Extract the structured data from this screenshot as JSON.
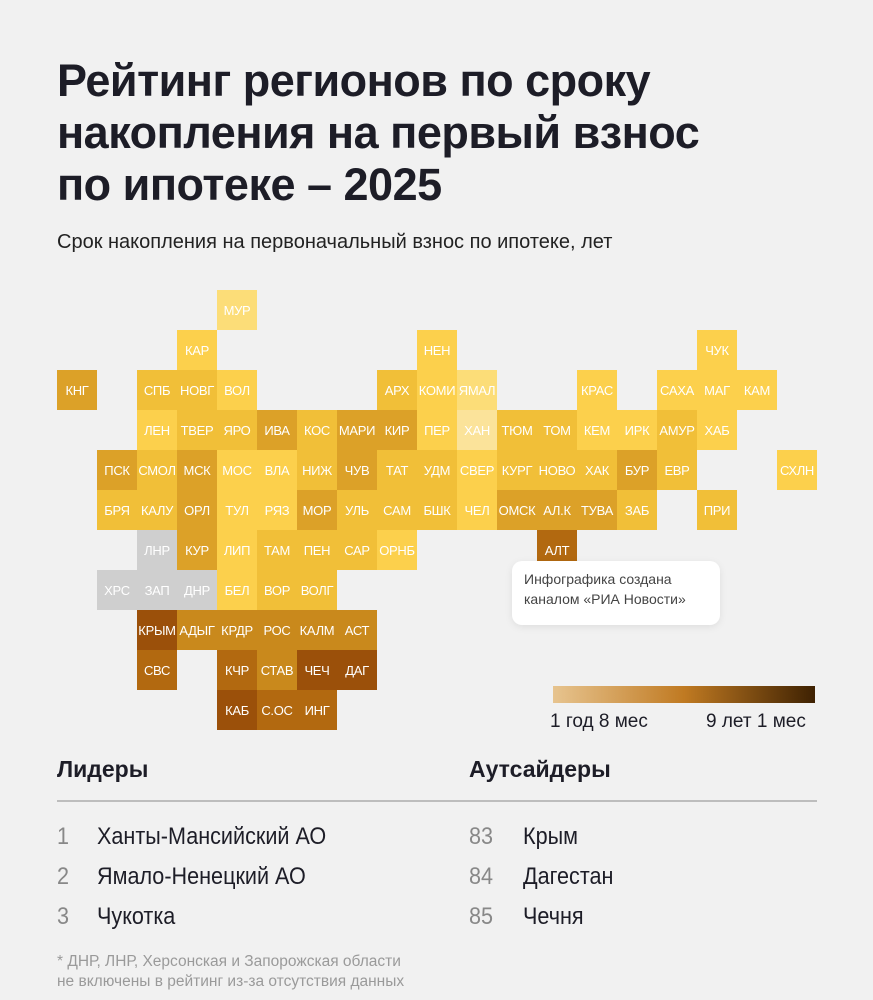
{
  "title_lines": [
    "Рейтинг регионов по сроку",
    "накопления на первый взнос",
    "по ипотеке – 2025"
  ],
  "subtitle": "Срок накопления на первоначальный взнос по ипотеке, лет",
  "colors": {
    "L0": "#fcdd78",
    "L1": "#fcd04c",
    "L2": "#f1bf38",
    "L3": "#dca128",
    "L4": "#c9891c",
    "L5": "#b26910",
    "L6": "#9b500a",
    "nodata": "#cfcfcf",
    "xan": "#fbe39a"
  },
  "tiles": [
    {
      "label": "МУР",
      "color": "L0"
    },
    {
      "label": "КАР",
      "color": "L1"
    },
    {
      "label": "НЕН",
      "color": "L1"
    },
    {
      "label": "ЧУК",
      "color": "L1"
    },
    {
      "label": "КНГ",
      "color": "L3"
    },
    {
      "label": "СПБ",
      "color": "L2"
    },
    {
      "label": "НОВГ",
      "color": "L2"
    },
    {
      "label": "ВОЛ",
      "color": "L1"
    },
    {
      "label": "АРХ",
      "color": "L2"
    },
    {
      "label": "КОМИ",
      "color": "L1"
    },
    {
      "label": "ЯМАЛ",
      "color": "L0"
    },
    {
      "label": "КРАС",
      "color": "L1"
    },
    {
      "label": "САХА",
      "color": "L1"
    },
    {
      "label": "МАГ",
      "color": "L1"
    },
    {
      "label": "КАМ",
      "color": "L1"
    },
    {
      "label": "ЛЕН",
      "color": "L1"
    },
    {
      "label": "ТВЕР",
      "color": "L2"
    },
    {
      "label": "ЯРО",
      "color": "L2"
    },
    {
      "label": "ИВА",
      "color": "L3"
    },
    {
      "label": "КОС",
      "color": "L2"
    },
    {
      "label": "МАРИ",
      "color": "L3"
    },
    {
      "label": "КИР",
      "color": "L3"
    },
    {
      "label": "ПЕР",
      "color": "L1"
    },
    {
      "label": "ХАН",
      "color": "xan"
    },
    {
      "label": "ТЮМ",
      "color": "L2"
    },
    {
      "label": "ТОМ",
      "color": "L2"
    },
    {
      "label": "КЕМ",
      "color": "L1"
    },
    {
      "label": "ИРК",
      "color": "L1"
    },
    {
      "label": "АМУР",
      "color": "L2"
    },
    {
      "label": "ХАБ",
      "color": "L1"
    },
    {
      "label": "ПСК",
      "color": "L3"
    },
    {
      "label": "СМОЛ",
      "color": "L2"
    },
    {
      "label": "МСК",
      "color": "L3"
    },
    {
      "label": "МОС",
      "color": "L1"
    },
    {
      "label": "ВЛА",
      "color": "L1"
    },
    {
      "label": "НИЖ",
      "color": "L2"
    },
    {
      "label": "ЧУВ",
      "color": "L3"
    },
    {
      "label": "ТАТ",
      "color": "L2"
    },
    {
      "label": "УДМ",
      "color": "L2"
    },
    {
      "label": "СВЕР",
      "color": "L1"
    },
    {
      "label": "КУРГ",
      "color": "L2"
    },
    {
      "label": "НОВО",
      "color": "L2"
    },
    {
      "label": "ХАК",
      "color": "L2"
    },
    {
      "label": "БУР",
      "color": "L3"
    },
    {
      "label": "ЕВР",
      "color": "L2"
    },
    {
      "label": "СХЛН",
      "color": "L1"
    },
    {
      "label": "БРЯ",
      "color": "L2"
    },
    {
      "label": "КАЛУ",
      "color": "L2"
    },
    {
      "label": "ОРЛ",
      "color": "L3"
    },
    {
      "label": "ТУЛ",
      "color": "L1"
    },
    {
      "label": "РЯЗ",
      "color": "L1"
    },
    {
      "label": "МОР",
      "color": "L3"
    },
    {
      "label": "УЛЬ",
      "color": "L2"
    },
    {
      "label": "САМ",
      "color": "L2"
    },
    {
      "label": "БШК",
      "color": "L2"
    },
    {
      "label": "ЧЕЛ",
      "color": "L1"
    },
    {
      "label": "ОМСК",
      "color": "L3"
    },
    {
      "label": "АЛ.К",
      "color": "L3"
    },
    {
      "label": "ТУВА",
      "color": "L3"
    },
    {
      "label": "ЗАБ",
      "color": "L2"
    },
    {
      "label": "ПРИ",
      "color": "L2"
    },
    {
      "label": "ЛНР",
      "color": "nodata"
    },
    {
      "label": "КУР",
      "color": "L3"
    },
    {
      "label": "ЛИП",
      "color": "L1"
    },
    {
      "label": "ТАМ",
      "color": "L2"
    },
    {
      "label": "ПЕН",
      "color": "L2"
    },
    {
      "label": "САР",
      "color": "L2"
    },
    {
      "label": "ОРНБ",
      "color": "L1"
    },
    {
      "label": "АЛТ",
      "color": "L5"
    },
    {
      "label": "ХРС",
      "color": "nodata"
    },
    {
      "label": "ЗАП",
      "color": "nodata"
    },
    {
      "label": "ДНР",
      "color": "nodata"
    },
    {
      "label": "БЕЛ",
      "color": "L1"
    },
    {
      "label": "ВОР",
      "color": "L2"
    },
    {
      "label": "ВОЛГ",
      "color": "L2"
    },
    {
      "label": "КРЫМ",
      "color": "L6"
    },
    {
      "label": "АДЫГ",
      "color": "L4"
    },
    {
      "label": "КРДР",
      "color": "L4"
    },
    {
      "label": "РОС",
      "color": "L4"
    },
    {
      "label": "КАЛМ",
      "color": "L4"
    },
    {
      "label": "АСТ",
      "color": "L4"
    },
    {
      "label": "СВС",
      "color": "L5"
    },
    {
      "label": "КЧР",
      "color": "L5"
    },
    {
      "label": "СТАВ",
      "color": "L4"
    },
    {
      "label": "ЧЕЧ",
      "color": "L6"
    },
    {
      "label": "ДАГ",
      "color": "L6"
    },
    {
      "label": "КАБ",
      "color": "L6"
    },
    {
      "label": "С.ОС",
      "color": "L5"
    },
    {
      "label": "ИНГ",
      "color": "L5"
    }
  ],
  "card": {
    "line1": "Инфографика создана",
    "line2": "каналом «РИА Новости»"
  },
  "legend": {
    "min_label": "1 год 8 мес",
    "max_label": "9 лет 1 мес",
    "gradient": [
      "#e7c48f",
      "#c07a22",
      "#3e2102"
    ]
  },
  "leaders": {
    "title": "Лидеры",
    "items": [
      {
        "rank": "1",
        "name": "Ханты-Мансийский АО"
      },
      {
        "rank": "2",
        "name": "Ямало-Ненецкий АО"
      },
      {
        "rank": "3",
        "name": "Чукотка"
      }
    ]
  },
  "outsiders": {
    "title": "Аутсайдеры",
    "items": [
      {
        "rank": "83",
        "name": "Крым"
      },
      {
        "rank": "84",
        "name": "Дагестан"
      },
      {
        "rank": "85",
        "name": "Чечня"
      }
    ]
  },
  "footnote": [
    "* ДНР, ЛНР, Херсонская и Запорожская области",
    "не включены в рейтинг из-за отсутствия данных"
  ]
}
